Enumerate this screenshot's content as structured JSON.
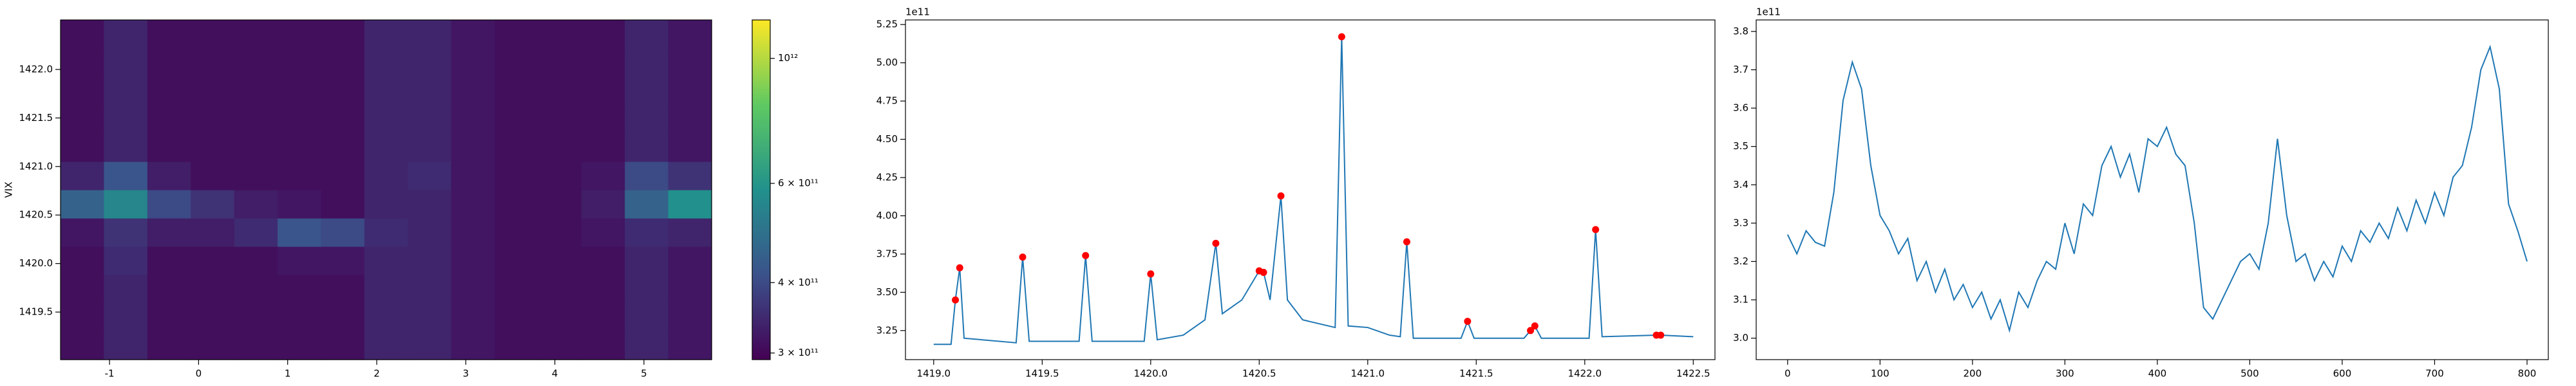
{
  "chart_data": [
    {
      "type": "heatmap",
      "ylabel": "VIX",
      "xlim": [
        -1.55,
        5.76
      ],
      "ylim": [
        1419.01,
        1422.51
      ],
      "xticks": [
        -1,
        0,
        1,
        2,
        3,
        4,
        5
      ],
      "yticks": [
        1419.5,
        {
          "value": 1420,
          "label": "1420.0"
        },
        1420.5,
        {
          "value": 1421,
          "label": "1421.0"
        },
        1421.5,
        {
          "value": 1422,
          "label": "1422.0"
        }
      ],
      "colormap": "viridis",
      "colorbar_scale": "log",
      "clim": [
        292000000000.0,
        1170000000000.0
      ],
      "colorbar_ticks": [
        {
          "value": 300000000000.0,
          "label": "3 × 10¹¹"
        },
        {
          "value": 400000000000.0,
          "label": "4 × 10¹¹"
        },
        {
          "value": 600000000000.0,
          "label": "6 × 10¹¹"
        },
        {
          "value": 1000000000000.0,
          "label": "10¹²"
        }
      ],
      "z": [
        [
          310000000000.0,
          340000000000.0,
          310000000000.0,
          310000000000.0,
          310000000000.0,
          310000000000.0,
          310000000000.0,
          340000000000.0,
          340000000000.0,
          320000000000.0,
          310000000000.0,
          310000000000.0,
          310000000000.0,
          340000000000.0,
          320000000000.0
        ],
        [
          310000000000.0,
          340000000000.0,
          310000000000.0,
          310000000000.0,
          310000000000.0,
          310000000000.0,
          310000000000.0,
          340000000000.0,
          340000000000.0,
          320000000000.0,
          310000000000.0,
          310000000000.0,
          310000000000.0,
          340000000000.0,
          320000000000.0
        ],
        [
          310000000000.0,
          340000000000.0,
          310000000000.0,
          310000000000.0,
          310000000000.0,
          310000000000.0,
          310000000000.0,
          340000000000.0,
          340000000000.0,
          320000000000.0,
          310000000000.0,
          310000000000.0,
          310000000000.0,
          340000000000.0,
          320000000000.0
        ],
        [
          310000000000.0,
          350000000000.0,
          310000000000.0,
          310000000000.0,
          310000000000.0,
          320000000000.0,
          320000000000.0,
          340000000000.0,
          340000000000.0,
          320000000000.0,
          310000000000.0,
          310000000000.0,
          310000000000.0,
          340000000000.0,
          320000000000.0
        ],
        [
          320000000000.0,
          360000000000.0,
          330000000000.0,
          330000000000.0,
          350000000000.0,
          420000000000.0,
          400000000000.0,
          350000000000.0,
          340000000000.0,
          320000000000.0,
          310000000000.0,
          310000000000.0,
          320000000000.0,
          350000000000.0,
          340000000000.0
        ],
        [
          450000000000.0,
          550000000000.0,
          400000000000.0,
          360000000000.0,
          330000000000.0,
          320000000000.0,
          310000000000.0,
          340000000000.0,
          340000000000.0,
          320000000000.0,
          310000000000.0,
          310000000000.0,
          330000000000.0,
          450000000000.0,
          580000000000.0
        ],
        [
          340000000000.0,
          420000000000.0,
          330000000000.0,
          310000000000.0,
          310000000000.0,
          310000000000.0,
          310000000000.0,
          340000000000.0,
          350000000000.0,
          320000000000.0,
          310000000000.0,
          310000000000.0,
          320000000000.0,
          400000000000.0,
          360000000000.0
        ],
        [
          310000000000.0,
          340000000000.0,
          310000000000.0,
          310000000000.0,
          310000000000.0,
          310000000000.0,
          310000000000.0,
          340000000000.0,
          340000000000.0,
          320000000000.0,
          310000000000.0,
          310000000000.0,
          310000000000.0,
          340000000000.0,
          320000000000.0
        ],
        [
          310000000000.0,
          340000000000.0,
          310000000000.0,
          310000000000.0,
          310000000000.0,
          310000000000.0,
          310000000000.0,
          340000000000.0,
          340000000000.0,
          320000000000.0,
          310000000000.0,
          310000000000.0,
          310000000000.0,
          340000000000.0,
          320000000000.0
        ],
        [
          310000000000.0,
          340000000000.0,
          310000000000.0,
          310000000000.0,
          310000000000.0,
          310000000000.0,
          310000000000.0,
          340000000000.0,
          340000000000.0,
          320000000000.0,
          310000000000.0,
          310000000000.0,
          310000000000.0,
          340000000000.0,
          320000000000.0
        ],
        [
          310000000000.0,
          340000000000.0,
          310000000000.0,
          310000000000.0,
          310000000000.0,
          310000000000.0,
          310000000000.0,
          340000000000.0,
          340000000000.0,
          320000000000.0,
          310000000000.0,
          310000000000.0,
          310000000000.0,
          340000000000.0,
          320000000000.0
        ],
        [
          310000000000.0,
          340000000000.0,
          310000000000.0,
          310000000000.0,
          310000000000.0,
          310000000000.0,
          310000000000.0,
          340000000000.0,
          340000000000.0,
          320000000000.0,
          310000000000.0,
          310000000000.0,
          310000000000.0,
          340000000000.0,
          320000000000.0
        ]
      ]
    },
    {
      "type": "line",
      "y_offset_label": "1e11",
      "xlim": [
        1418.87,
        1422.6
      ],
      "ylim": [
        3.06,
        5.28
      ],
      "xticks": [
        {
          "value": 1419,
          "label": "1419.0"
        },
        1419.5,
        {
          "value": 1420,
          "label": "1420.0"
        },
        1420.5,
        {
          "value": 1421,
          "label": "1421.0"
        },
        1421.5,
        {
          "value": 1422,
          "label": "1422.0"
        },
        1422.5
      ],
      "yticks": [
        3.25,
        {
          "value": 3.5,
          "label": "3.50"
        },
        3.75,
        {
          "value": 4,
          "label": "4.00"
        },
        4.25,
        {
          "value": 4.5,
          "label": "4.50"
        },
        4.75,
        {
          "value": 5,
          "label": "5.00"
        },
        5.25
      ],
      "x": [
        1419.0,
        1419.08,
        1419.1,
        1419.12,
        1419.14,
        1419.38,
        1419.41,
        1419.44,
        1419.67,
        1419.7,
        1419.73,
        1419.97,
        1420.0,
        1420.03,
        1420.15,
        1420.25,
        1420.3,
        1420.33,
        1420.42,
        1420.5,
        1420.52,
        1420.55,
        1420.6,
        1420.63,
        1420.7,
        1420.85,
        1420.88,
        1420.91,
        1421.0,
        1421.1,
        1421.15,
        1421.18,
        1421.21,
        1421.43,
        1421.46,
        1421.49,
        1421.72,
        1421.75,
        1421.77,
        1421.8,
        1422.02,
        1422.05,
        1422.08,
        1422.33,
        1422.35,
        1422.5
      ],
      "series": [
        {
          "color": "#1f77b4",
          "values": [
            3.16,
            3.16,
            3.45,
            3.66,
            3.2,
            3.17,
            3.73,
            3.18,
            3.18,
            3.74,
            3.18,
            3.18,
            3.62,
            3.19,
            3.22,
            3.32,
            3.82,
            3.36,
            3.45,
            3.64,
            3.63,
            3.45,
            4.13,
            3.45,
            3.32,
            3.27,
            5.17,
            3.28,
            3.27,
            3.22,
            3.21,
            3.83,
            3.2,
            3.2,
            3.31,
            3.2,
            3.2,
            3.25,
            3.28,
            3.2,
            3.2,
            3.91,
            3.21,
            3.22,
            3.22,
            3.21
          ]
        }
      ],
      "peak_indices": [
        2,
        3,
        6,
        9,
        12,
        16,
        19,
        20,
        22,
        26,
        31,
        34,
        37,
        38,
        41,
        43,
        44
      ],
      "peak_color": "red"
    },
    {
      "type": "line",
      "y_offset_label": "1e11",
      "xlim": [
        -34,
        823
      ],
      "ylim": [
        2.944,
        3.83
      ],
      "xticks": [
        0,
        100,
        200,
        300,
        400,
        500,
        600,
        700,
        800
      ],
      "yticks": [
        {
          "value": 3,
          "label": "3.0"
        },
        3.1,
        3.2,
        3.3,
        3.4,
        3.5,
        3.6,
        3.7,
        3.8
      ],
      "x": [
        0,
        10,
        20,
        30,
        40,
        50,
        60,
        70,
        80,
        90,
        100,
        110,
        120,
        130,
        140,
        150,
        160,
        170,
        180,
        190,
        200,
        210,
        220,
        230,
        240,
        250,
        260,
        270,
        280,
        290,
        300,
        310,
        320,
        330,
        340,
        350,
        360,
        370,
        380,
        390,
        400,
        410,
        420,
        430,
        440,
        450,
        460,
        470,
        480,
        490,
        500,
        510,
        520,
        530,
        540,
        550,
        560,
        570,
        580,
        590,
        600,
        610,
        620,
        630,
        640,
        650,
        660,
        670,
        680,
        690,
        700,
        710,
        720,
        730,
        740,
        750,
        760,
        770,
        780,
        790,
        800
      ],
      "series": [
        {
          "color": "#1f77b4",
          "values": [
            3.27,
            3.22,
            3.28,
            3.25,
            3.24,
            3.38,
            3.62,
            3.72,
            3.65,
            3.45,
            3.32,
            3.28,
            3.22,
            3.26,
            3.15,
            3.2,
            3.12,
            3.18,
            3.1,
            3.14,
            3.08,
            3.12,
            3.05,
            3.1,
            3.02,
            3.12,
            3.08,
            3.15,
            3.2,
            3.18,
            3.3,
            3.22,
            3.35,
            3.32,
            3.45,
            3.5,
            3.42,
            3.48,
            3.38,
            3.52,
            3.5,
            3.55,
            3.48,
            3.45,
            3.3,
            3.08,
            3.05,
            3.1,
            3.15,
            3.2,
            3.22,
            3.18,
            3.3,
            3.52,
            3.32,
            3.2,
            3.22,
            3.15,
            3.2,
            3.16,
            3.24,
            3.2,
            3.28,
            3.25,
            3.3,
            3.26,
            3.34,
            3.28,
            3.36,
            3.3,
            3.38,
            3.32,
            3.42,
            3.45,
            3.55,
            3.7,
            3.76,
            3.65,
            3.35,
            3.28,
            3.2
          ]
        }
      ]
    }
  ]
}
